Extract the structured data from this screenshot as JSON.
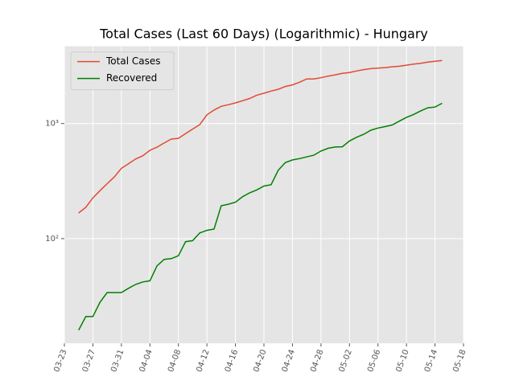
{
  "chart_data": {
    "type": "line",
    "title": "Total Cases (Last 60 Days) (Logarithmic) - Hungary",
    "x": [
      "03-25",
      "03-26",
      "03-27",
      "03-28",
      "03-29",
      "03-30",
      "03-31",
      "04-01",
      "04-02",
      "04-03",
      "04-04",
      "04-05",
      "04-06",
      "04-07",
      "04-08",
      "04-09",
      "04-10",
      "04-11",
      "04-12",
      "04-13",
      "04-14",
      "04-15",
      "04-16",
      "04-17",
      "04-18",
      "04-19",
      "04-20",
      "04-21",
      "04-22",
      "04-23",
      "04-24",
      "04-25",
      "04-26",
      "04-27",
      "04-28",
      "04-29",
      "04-30",
      "05-01",
      "05-02",
      "05-03",
      "05-04",
      "05-05",
      "05-06",
      "05-07",
      "05-08",
      "05-09",
      "05-10",
      "05-11",
      "05-12",
      "05-13",
      "05-14",
      "05-15"
    ],
    "series": [
      {
        "name": "Total Cases",
        "color": "#e24a33",
        "values": [
          167,
          187,
          226,
          261,
          300,
          343,
          408,
          447,
          492,
          525,
          585,
          623,
          678,
          733,
          744,
          817,
          895,
          980,
          1190,
          1310,
          1410,
          1458,
          1512,
          1579,
          1652,
          1763,
          1834,
          1916,
          1984,
          2098,
          2168,
          2284,
          2443,
          2443,
          2500,
          2583,
          2649,
          2727,
          2775,
          2863,
          2942,
          2998,
          3035,
          3065,
          3112,
          3150,
          3213,
          3284,
          3341,
          3417,
          3473,
          3535
        ]
      },
      {
        "name": "Recovered",
        "color": "#008000",
        "values": [
          16,
          21,
          21,
          28,
          34,
          34,
          34,
          37,
          40,
          42,
          43,
          58,
          66,
          67,
          71,
          94,
          96,
          112,
          118,
          121,
          193,
          199,
          207,
          231,
          250,
          265,
          286,
          294,
          392,
          458,
          483,
          496,
          513,
          531,
          577,
          609,
          625,
          628,
          706,
          760,
          806,
          875,
          914,
          940,
          972,
          1050,
          1130,
          1200,
          1290,
          1370,
          1390,
          1500
        ]
      }
    ],
    "xlim": [
      "03-23",
      "05-18"
    ],
    "xticks": [
      "03-23",
      "03-27",
      "03-31",
      "04-04",
      "04-08",
      "04-12",
      "04-16",
      "04-20",
      "04-24",
      "04-28",
      "05-02",
      "05-06",
      "05-10",
      "05-14",
      "05-18"
    ],
    "ylim": [
      12.3,
      4690
    ],
    "yticks": [
      {
        "value": 100,
        "label": "10²"
      },
      {
        "value": 1000,
        "label": "10³"
      }
    ],
    "log_y": true,
    "grid": true,
    "legend": "upper left"
  }
}
